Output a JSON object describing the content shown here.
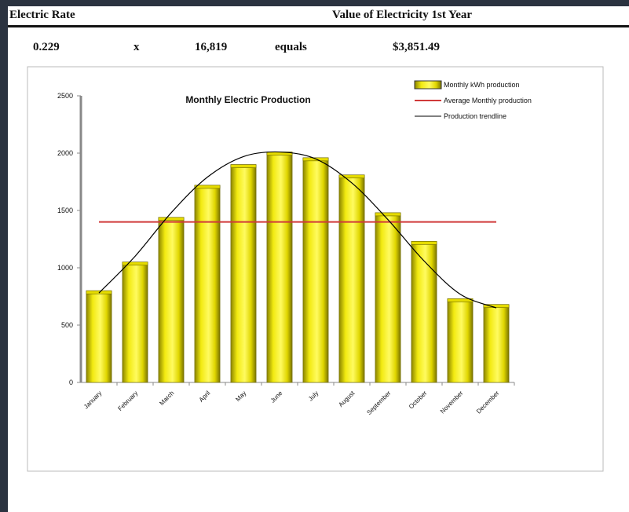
{
  "header": {
    "labels": [
      "Electric Rate",
      "Value of Electricity 1st Year"
    ],
    "values": [
      "0.229",
      "x",
      "16,819",
      "equals",
      "$3,851.49"
    ]
  },
  "chart_data": {
    "type": "bar",
    "title": "Monthly Electric Production",
    "categories": [
      "January",
      "February",
      "March",
      "April",
      "May",
      "June",
      "July",
      "August",
      "September",
      "October",
      "November",
      "December"
    ],
    "series": [
      {
        "name": "Monthly kWh production",
        "type": "bar",
        "color": "#e6dc00",
        "values": [
          800,
          1050,
          1440,
          1720,
          1900,
          2010,
          1960,
          1810,
          1480,
          1230,
          730,
          680
        ]
      },
      {
        "name": "Average Monthly production",
        "type": "line",
        "color": "#d03a3a",
        "values": [
          1400,
          1400,
          1400,
          1400,
          1400,
          1400,
          1400,
          1400,
          1400,
          1400,
          1400,
          1400
        ]
      },
      {
        "name": "Production trendline",
        "type": "curve",
        "color": "#000000",
        "values": [
          780,
          1100,
          1480,
          1790,
          1970,
          2010,
          1950,
          1740,
          1420,
          1060,
          770,
          650
        ]
      }
    ],
    "ylim": [
      0,
      2500
    ],
    "yticks": [
      0,
      500,
      1000,
      1500,
      2000,
      2500
    ],
    "grid": false,
    "legend": "top-right"
  }
}
